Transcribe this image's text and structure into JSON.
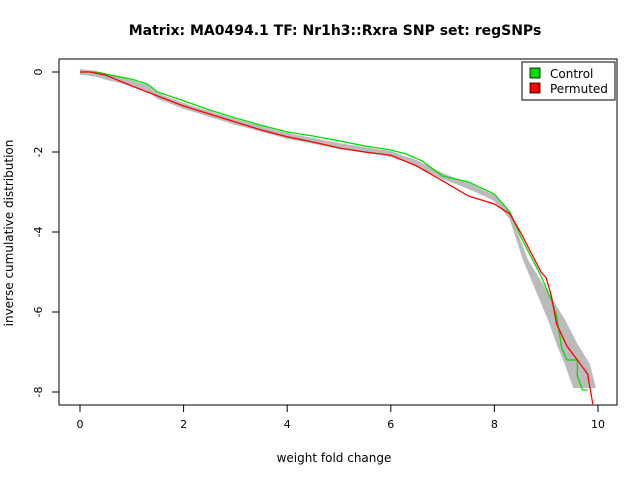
{
  "chart_data": {
    "type": "line",
    "title": "Matrix: MA0494.1 TF: Nr1h3::Rxra SNP set: regSNPs",
    "xlabel": "weight fold change",
    "ylabel": "inverse cumulative distribution",
    "xlim": [
      0,
      10
    ],
    "ylim": [
      -8.2,
      0.2
    ],
    "x_ticks": [
      0,
      2,
      4,
      6,
      8,
      10
    ],
    "x_tick_labels": [
      "0",
      "2",
      "4",
      "6",
      "8",
      "10"
    ],
    "y_ticks": [
      0,
      -2,
      -4,
      -6,
      -8
    ],
    "y_tick_labels": [
      "0",
      "-2",
      "-4",
      "-6",
      "-8"
    ],
    "grid": false,
    "legend_position": "top-right",
    "legend": [
      {
        "label": "Control",
        "color": "#00dd00"
      },
      {
        "label": "Permuted",
        "color": "#ff0000"
      }
    ],
    "background_curves": {
      "color": "#bbbbbb",
      "count": 40,
      "x": [
        0,
        0.3,
        0.5,
        1.0,
        1.3,
        1.5,
        2.0,
        2.5,
        3.0,
        3.5,
        4.0,
        4.5,
        5.0,
        5.5,
        6.0,
        6.5,
        7.0,
        7.5,
        8.0,
        8.3,
        8.6,
        8.8,
        9.0,
        9.2,
        9.4,
        9.6,
        9.8
      ],
      "y": [
        0,
        -0.04,
        -0.12,
        -0.28,
        -0.4,
        -0.6,
        -0.85,
        -1.05,
        -1.25,
        -1.42,
        -1.6,
        -1.72,
        -1.85,
        -1.95,
        -2.05,
        -2.28,
        -2.6,
        -2.85,
        -3.15,
        -3.6,
        -4.7,
        -5.2,
        -5.7,
        -6.2,
        -6.8,
        -7.3,
        -7.9
      ]
    },
    "series": [
      {
        "name": "Control",
        "color": "#00dd00",
        "x": [
          0,
          0.2,
          0.4,
          0.6,
          1.0,
          1.3,
          1.5,
          2.0,
          2.5,
          3.0,
          3.5,
          4.0,
          4.5,
          5.0,
          5.5,
          6.0,
          6.3,
          6.6,
          7.0,
          7.5,
          8.0,
          8.3,
          8.5,
          8.7,
          8.9,
          9.0,
          9.1,
          9.2,
          9.3,
          9.4,
          9.5,
          9.6,
          9.6,
          9.7,
          9.8
        ],
        "y": [
          0,
          0,
          -0.02,
          -0.08,
          -0.18,
          -0.3,
          -0.5,
          -0.72,
          -0.95,
          -1.15,
          -1.33,
          -1.5,
          -1.6,
          -1.72,
          -1.85,
          -1.95,
          -2.05,
          -2.22,
          -2.6,
          -2.75,
          -3.05,
          -3.5,
          -4.1,
          -4.6,
          -5.1,
          -5.4,
          -5.7,
          -6.1,
          -6.9,
          -7.2,
          -7.2,
          -7.2,
          -7.6,
          -7.95,
          -7.95
        ]
      },
      {
        "name": "Permuted",
        "color": "#ff0000",
        "x": [
          0,
          0.2,
          0.5,
          1.0,
          1.5,
          2.0,
          2.5,
          3.0,
          3.5,
          4.0,
          4.5,
          5.0,
          5.5,
          6.0,
          6.5,
          7.0,
          7.5,
          8.0,
          8.3,
          8.5,
          8.7,
          8.9,
          9.0,
          9.1,
          9.2,
          9.4,
          9.6,
          9.8,
          9.9
        ],
        "y": [
          0,
          0,
          -0.08,
          -0.35,
          -0.6,
          -0.85,
          -1.05,
          -1.25,
          -1.45,
          -1.62,
          -1.75,
          -1.9,
          -2.0,
          -2.08,
          -2.35,
          -2.72,
          -3.1,
          -3.3,
          -3.55,
          -4.0,
          -4.5,
          -5.0,
          -5.15,
          -5.6,
          -6.3,
          -6.85,
          -7.2,
          -7.55,
          -8.3
        ]
      }
    ]
  }
}
